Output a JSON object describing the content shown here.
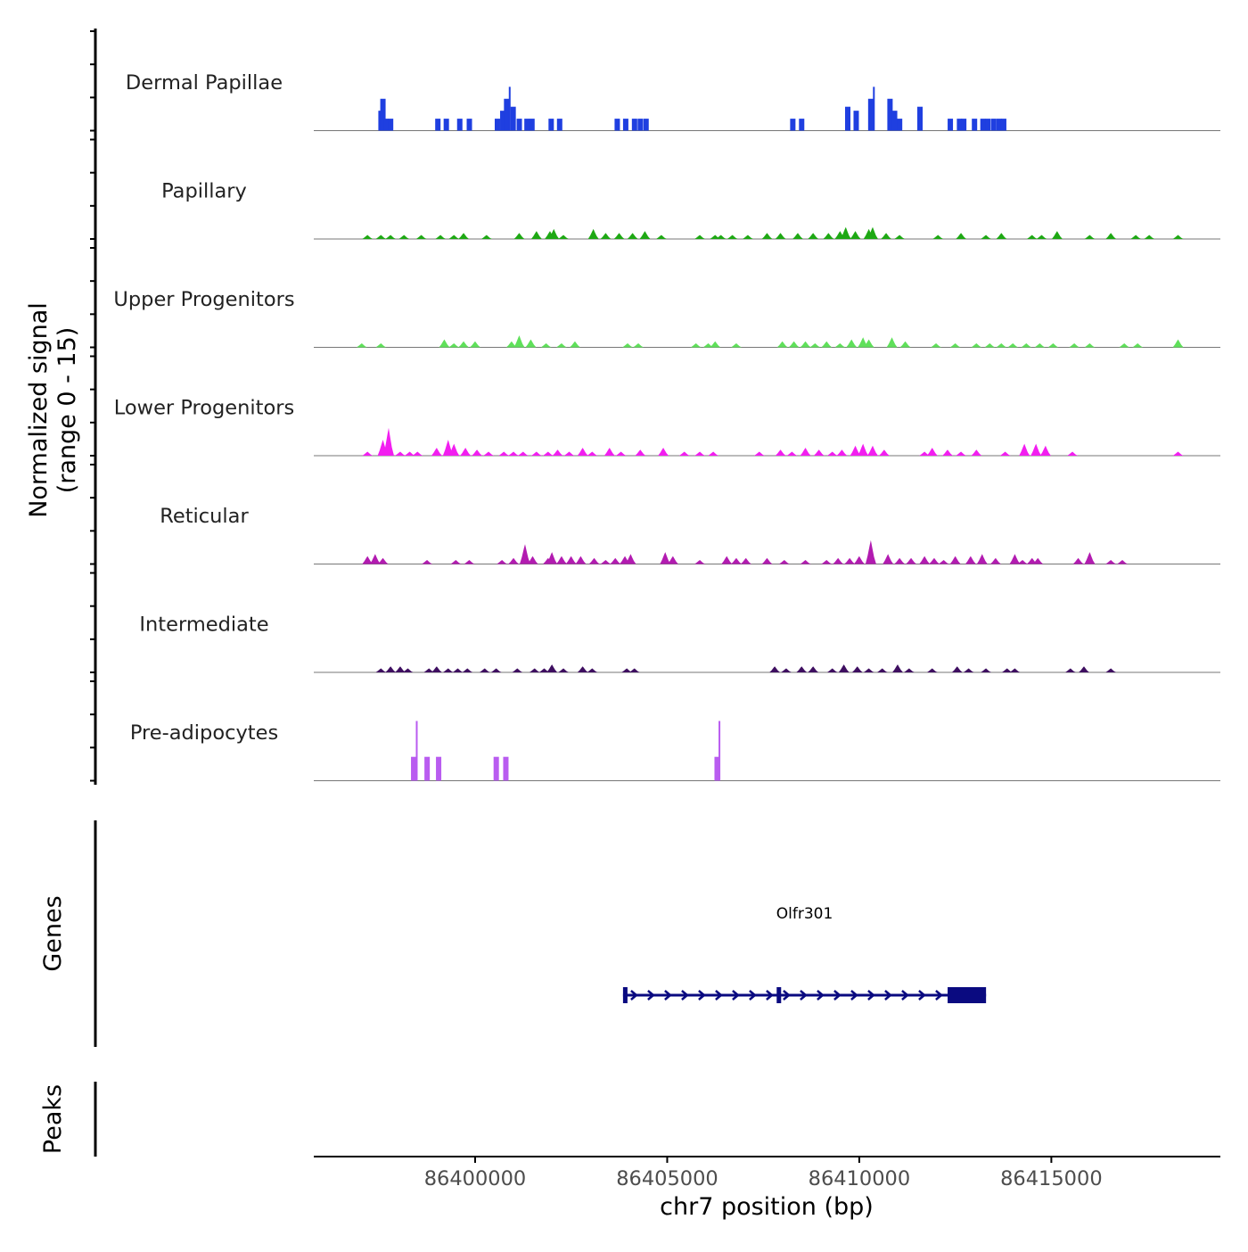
{
  "chart_data": {
    "type": "area",
    "title": "",
    "ylabel_line1": "Normalized signal",
    "ylabel_line2": "(range 0 - 15)",
    "genes_label": "Genes",
    "peaks_label": "Peaks",
    "xlabel": "chr7 position (bp)",
    "xlim": [
      86395800,
      86419400
    ],
    "ylim": [
      0,
      15
    ],
    "x_ticks": [
      86400000,
      86405000,
      86410000,
      86415000
    ],
    "x_tick_labels": [
      "86400000",
      "86405000",
      "86410000",
      "86415000"
    ],
    "tracks": [
      {
        "name": "Dermal Papillae",
        "color": "#1f3fe0",
        "style": "block",
        "peaks": [
          [
            86397550,
            5
          ],
          [
            86397600,
            8
          ],
          [
            86397680,
            3
          ],
          [
            86397800,
            3
          ],
          [
            86399030,
            3
          ],
          [
            86399250,
            3
          ],
          [
            86399600,
            3
          ],
          [
            86399850,
            3
          ],
          [
            86400580,
            3
          ],
          [
            86400720,
            5
          ],
          [
            86400820,
            8
          ],
          [
            86400900,
            11
          ],
          [
            86400990,
            6
          ],
          [
            86401150,
            3
          ],
          [
            86401350,
            3
          ],
          [
            86401480,
            3
          ],
          [
            86401980,
            3
          ],
          [
            86402200,
            3
          ],
          [
            86403700,
            3
          ],
          [
            86403920,
            3
          ],
          [
            86404150,
            3
          ],
          [
            86404300,
            3
          ],
          [
            86404450,
            3
          ],
          [
            86408270,
            3
          ],
          [
            86408500,
            3
          ],
          [
            86409700,
            6
          ],
          [
            86409920,
            5
          ],
          [
            86410300,
            8
          ],
          [
            86410380,
            11
          ],
          [
            86410800,
            8
          ],
          [
            86410920,
            5
          ],
          [
            86411050,
            3
          ],
          [
            86411580,
            6
          ],
          [
            86412370,
            3
          ],
          [
            86412610,
            3
          ],
          [
            86412720,
            3
          ],
          [
            86413000,
            3
          ],
          [
            86413220,
            3
          ],
          [
            86413350,
            3
          ],
          [
            86413500,
            3
          ],
          [
            86413640,
            3
          ],
          [
            86413760,
            3
          ]
        ]
      },
      {
        "name": "Papillary",
        "color": "#1ea814",
        "style": "area",
        "peaks": [
          [
            86397200,
            1
          ],
          [
            86397550,
            1
          ],
          [
            86397800,
            1
          ],
          [
            86398150,
            1
          ],
          [
            86398600,
            1
          ],
          [
            86399100,
            1
          ],
          [
            86399450,
            1
          ],
          [
            86399700,
            1.5
          ],
          [
            86400300,
            1
          ],
          [
            86401150,
            1.5
          ],
          [
            86401600,
            2
          ],
          [
            86401950,
            2
          ],
          [
            86402050,
            2.5
          ],
          [
            86402300,
            1
          ],
          [
            86403080,
            2.5
          ],
          [
            86403400,
            1.5
          ],
          [
            86403750,
            1.5
          ],
          [
            86404100,
            1.5
          ],
          [
            86404420,
            2
          ],
          [
            86404850,
            1
          ],
          [
            86405850,
            1
          ],
          [
            86406250,
            1
          ],
          [
            86406400,
            1
          ],
          [
            86406700,
            1
          ],
          [
            86407100,
            1
          ],
          [
            86407600,
            1.5
          ],
          [
            86407950,
            1.5
          ],
          [
            86408400,
            1.5
          ],
          [
            86408800,
            1.5
          ],
          [
            86409200,
            1.5
          ],
          [
            86409500,
            2
          ],
          [
            86409650,
            3
          ],
          [
            86409900,
            2
          ],
          [
            86410250,
            2.5
          ],
          [
            86410350,
            3
          ],
          [
            86410700,
            1.5
          ],
          [
            86411050,
            1
          ],
          [
            86412050,
            1
          ],
          [
            86412650,
            1.5
          ],
          [
            86413300,
            1
          ],
          [
            86413700,
            1.5
          ],
          [
            86414500,
            1
          ],
          [
            86414750,
            1
          ],
          [
            86415150,
            2
          ],
          [
            86416000,
            1
          ],
          [
            86416550,
            1.5
          ],
          [
            86417200,
            1
          ],
          [
            86417550,
            1
          ],
          [
            86418300,
            1
          ]
        ]
      },
      {
        "name": "Upper Progenitors",
        "color": "#5fe05a",
        "style": "area",
        "peaks": [
          [
            86397050,
            1
          ],
          [
            86397550,
            1
          ],
          [
            86399200,
            2
          ],
          [
            86399450,
            1
          ],
          [
            86399700,
            1.5
          ],
          [
            86400000,
            1.5
          ],
          [
            86400950,
            1.5
          ],
          [
            86401150,
            3
          ],
          [
            86401450,
            2
          ],
          [
            86401850,
            1
          ],
          [
            86402250,
            1
          ],
          [
            86402600,
            1.5
          ],
          [
            86403970,
            1
          ],
          [
            86404250,
            1
          ],
          [
            86405750,
            1
          ],
          [
            86406070,
            1
          ],
          [
            86406250,
            1.5
          ],
          [
            86406800,
            1
          ],
          [
            86408000,
            1.5
          ],
          [
            86408300,
            1.5
          ],
          [
            86408600,
            1.5
          ],
          [
            86408850,
            1
          ],
          [
            86409150,
            1.5
          ],
          [
            86409500,
            1
          ],
          [
            86409800,
            2
          ],
          [
            86410100,
            2.5
          ],
          [
            86410250,
            2
          ],
          [
            86410850,
            2.5
          ],
          [
            86411200,
            1.5
          ],
          [
            86412000,
            1
          ],
          [
            86412500,
            1
          ],
          [
            86413050,
            1
          ],
          [
            86413400,
            1
          ],
          [
            86413700,
            1
          ],
          [
            86414000,
            1
          ],
          [
            86414350,
            1
          ],
          [
            86414700,
            1
          ],
          [
            86415050,
            1
          ],
          [
            86415600,
            1
          ],
          [
            86416000,
            1
          ],
          [
            86416900,
            1
          ],
          [
            86417250,
            1
          ],
          [
            86418300,
            2
          ]
        ]
      },
      {
        "name": "Lower Progenitors",
        "color": "#f21ef0",
        "style": "area",
        "peaks": [
          [
            86397200,
            1
          ],
          [
            86397600,
            4
          ],
          [
            86397750,
            7
          ],
          [
            86398050,
            1
          ],
          [
            86398300,
            1
          ],
          [
            86398500,
            1
          ],
          [
            86399000,
            2
          ],
          [
            86399300,
            4
          ],
          [
            86399450,
            3
          ],
          [
            86399750,
            2
          ],
          [
            86400050,
            1.5
          ],
          [
            86400350,
            1
          ],
          [
            86400750,
            1
          ],
          [
            86401000,
            1
          ],
          [
            86401250,
            1
          ],
          [
            86401600,
            1
          ],
          [
            86401900,
            1
          ],
          [
            86402150,
            1.5
          ],
          [
            86402450,
            1
          ],
          [
            86402800,
            2
          ],
          [
            86403050,
            1
          ],
          [
            86403500,
            2
          ],
          [
            86403800,
            1
          ],
          [
            86404300,
            1.5
          ],
          [
            86404900,
            2
          ],
          [
            86405450,
            1
          ],
          [
            86405850,
            1
          ],
          [
            86406200,
            1
          ],
          [
            86407400,
            1
          ],
          [
            86407950,
            1.5
          ],
          [
            86408250,
            1
          ],
          [
            86408600,
            2
          ],
          [
            86408950,
            1.5
          ],
          [
            86409300,
            1
          ],
          [
            86409550,
            1.5
          ],
          [
            86409900,
            2.5
          ],
          [
            86410100,
            3
          ],
          [
            86410350,
            2.5
          ],
          [
            86410650,
            1.5
          ],
          [
            86411700,
            1
          ],
          [
            86411900,
            2
          ],
          [
            86412300,
            1.5
          ],
          [
            86412650,
            1
          ],
          [
            86413050,
            1.5
          ],
          [
            86413800,
            1
          ],
          [
            86414300,
            3
          ],
          [
            86414600,
            3
          ],
          [
            86414850,
            2.5
          ],
          [
            86415550,
            1
          ],
          [
            86418300,
            1
          ]
        ]
      },
      {
        "name": "Reticular",
        "color": "#b21bb0",
        "style": "area",
        "peaks": [
          [
            86397200,
            2
          ],
          [
            86397400,
            2.5
          ],
          [
            86397600,
            1.5
          ],
          [
            86398750,
            1
          ],
          [
            86399500,
            1
          ],
          [
            86399850,
            1
          ],
          [
            86400700,
            1
          ],
          [
            86401000,
            1.5
          ],
          [
            86401300,
            5
          ],
          [
            86401500,
            2
          ],
          [
            86401900,
            1.5
          ],
          [
            86402000,
            3
          ],
          [
            86402250,
            2
          ],
          [
            86402500,
            2
          ],
          [
            86402750,
            2
          ],
          [
            86403100,
            1.5
          ],
          [
            86403400,
            1
          ],
          [
            86403650,
            1.5
          ],
          [
            86403900,
            2
          ],
          [
            86404050,
            2.5
          ],
          [
            86404950,
            3
          ],
          [
            86405150,
            2
          ],
          [
            86405850,
            1
          ],
          [
            86406550,
            2
          ],
          [
            86406800,
            1.5
          ],
          [
            86407050,
            1.5
          ],
          [
            86407600,
            1.5
          ],
          [
            86408050,
            1
          ],
          [
            86408600,
            1
          ],
          [
            86409150,
            1
          ],
          [
            86409450,
            1.5
          ],
          [
            86409750,
            1.5
          ],
          [
            86410000,
            2
          ],
          [
            86410300,
            6
          ],
          [
            86410750,
            2.5
          ],
          [
            86411050,
            1.5
          ],
          [
            86411350,
            1.5
          ],
          [
            86411700,
            2
          ],
          [
            86411950,
            1.5
          ],
          [
            86412200,
            1
          ],
          [
            86412500,
            2
          ],
          [
            86412900,
            2
          ],
          [
            86413200,
            2.5
          ],
          [
            86413550,
            1.5
          ],
          [
            86414050,
            2.5
          ],
          [
            86414250,
            1
          ],
          [
            86414500,
            1.5
          ],
          [
            86414650,
            1.5
          ],
          [
            86415700,
            1.5
          ],
          [
            86416000,
            3
          ],
          [
            86416550,
            1
          ],
          [
            86416850,
            1
          ]
        ]
      },
      {
        "name": "Intermediate",
        "color": "#3e0e60",
        "style": "area",
        "peaks": [
          [
            86397550,
            1
          ],
          [
            86397800,
            1.5
          ],
          [
            86398050,
            1.5
          ],
          [
            86398250,
            1
          ],
          [
            86398800,
            1
          ],
          [
            86399000,
            1.5
          ],
          [
            86399300,
            1
          ],
          [
            86399550,
            1
          ],
          [
            86399800,
            1
          ],
          [
            86400250,
            1
          ],
          [
            86400550,
            1
          ],
          [
            86401100,
            1
          ],
          [
            86401550,
            1
          ],
          [
            86401800,
            1
          ],
          [
            86402000,
            2
          ],
          [
            86402300,
            1
          ],
          [
            86402800,
            1.5
          ],
          [
            86403050,
            1
          ],
          [
            86403950,
            1
          ],
          [
            86404150,
            1
          ],
          [
            86407800,
            1.5
          ],
          [
            86408100,
            1
          ],
          [
            86408500,
            1.5
          ],
          [
            86408800,
            1.5
          ],
          [
            86409300,
            1
          ],
          [
            86409600,
            2
          ],
          [
            86409950,
            1.5
          ],
          [
            86410250,
            1
          ],
          [
            86410600,
            1
          ],
          [
            86411000,
            2
          ],
          [
            86411300,
            1
          ],
          [
            86411900,
            1
          ],
          [
            86412550,
            1.5
          ],
          [
            86412850,
            1
          ],
          [
            86413300,
            1
          ],
          [
            86413850,
            1
          ],
          [
            86414050,
            1
          ],
          [
            86415500,
            1
          ],
          [
            86415850,
            1.5
          ],
          [
            86416550,
            1
          ]
        ]
      },
      {
        "name": "Pre-adipocytes",
        "color": "#b95cf0",
        "style": "block",
        "peaks": [
          [
            86398400,
            6
          ],
          [
            86398480,
            15
          ],
          [
            86398750,
            6
          ],
          [
            86399050,
            6
          ],
          [
            86400550,
            6
          ],
          [
            86400800,
            6
          ],
          [
            86406300,
            6
          ],
          [
            86406360,
            15
          ]
        ]
      }
    ],
    "genes": [
      {
        "name": "Olfr301",
        "start": 86403850,
        "end": 86413300,
        "strand": "+",
        "exons": [
          [
            86403850,
            86403950
          ],
          [
            86407850,
            86407950
          ],
          [
            86412300,
            86413300
          ]
        ]
      }
    ],
    "peaks_track": []
  }
}
